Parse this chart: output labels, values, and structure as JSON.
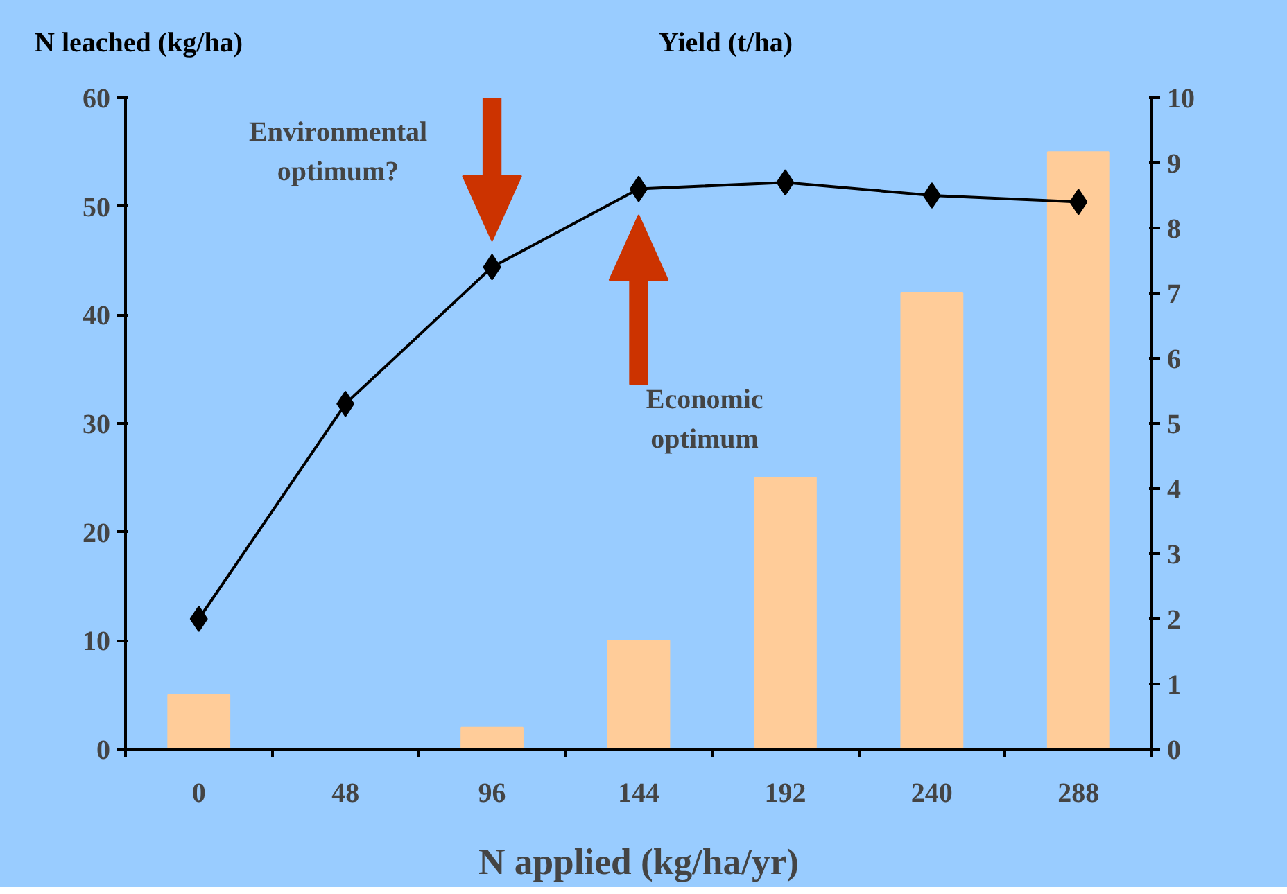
{
  "chart_data": {
    "type": "bar",
    "xlabel": "N applied (kg/ha/yr)",
    "ylabel": "N leached (kg/ha)",
    "y2label": "Yield (t/ha)",
    "categories": [
      "0",
      "48",
      "96",
      "144",
      "192",
      "240",
      "288"
    ],
    "series": [
      {
        "color": "#ffcc99",
        "values": [
          5,
          null,
          2,
          10,
          25,
          42,
          55
        ]
      },
      {
        "type": "line",
        "axis": "y2",
        "color": "#000000",
        "marker": "diamond",
        "values": [
          2.0,
          5.3,
          7.4,
          8.6,
          8.7,
          8.5,
          8.4
        ]
      }
    ],
    "ylim": [
      0,
      60
    ],
    "yticks": [
      0,
      10,
      20,
      30,
      40,
      50,
      60
    ],
    "y2lim": [
      0,
      10
    ],
    "y2ticks": [
      0,
      1,
      2,
      3,
      4,
      5,
      6,
      7,
      8,
      9,
      10
    ],
    "annotations": [
      "Environmental\noptimum?",
      "Economic\noptimum"
    ],
    "grid": false
  }
}
